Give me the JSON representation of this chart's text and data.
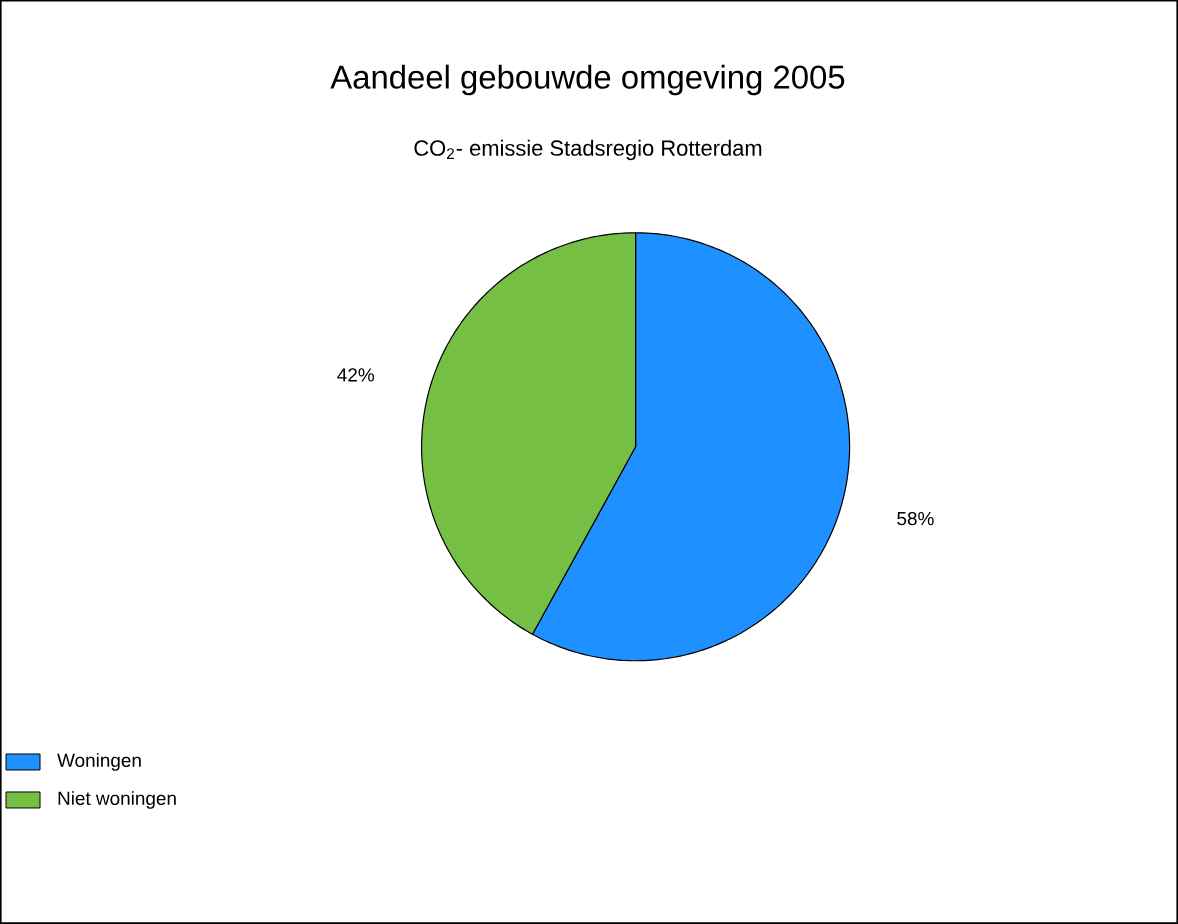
{
  "chart_data": {
    "type": "pie",
    "title": "Aandeel gebouwde omgeving 2005",
    "subtitle": "CO$_{2}$- emissie Stadsregio Rotterdam",
    "categories": [
      "Woningen",
      "Niet woningen"
    ],
    "values": [
      58,
      42
    ],
    "colors": [
      "#1e90ff",
      "#76bf45"
    ],
    "value_labels": [
      "58%",
      "42%"
    ],
    "legend": "bottom left"
  }
}
